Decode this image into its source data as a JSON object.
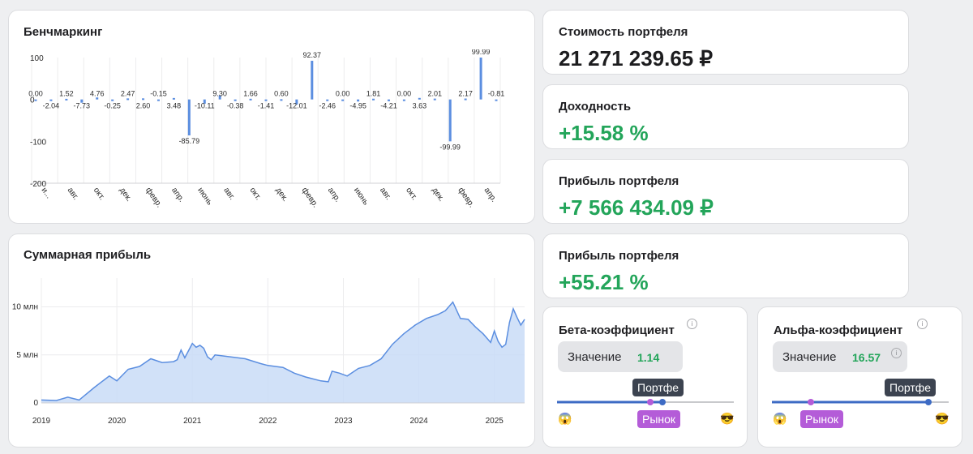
{
  "benchmark": {
    "title": "Бенчмаркинг",
    "chart_data": {
      "type": "bar",
      "y_ticks": [
        100,
        0,
        -100,
        -200
      ],
      "ylim": [
        -200,
        100
      ],
      "x_tick_labels": [
        "и...",
        "авг.",
        "окт.",
        "дек.",
        "февр.",
        "апр.",
        "июнь",
        "авг.",
        "окт.",
        "дек.",
        "февр.",
        "апр.",
        "июнь",
        "авг.",
        "окт.",
        "дек.",
        "февр.",
        "апр."
      ],
      "values": [
        0.0,
        -2.04,
        1.52,
        -7.73,
        4.76,
        -0.25,
        2.47,
        2.6,
        -0.15,
        3.48,
        -85.79,
        -10.11,
        9.3,
        -0.38,
        1.66,
        -1.41,
        0.6,
        -12.01,
        92.37,
        -2.46,
        0.0,
        -4.95,
        1.81,
        -4.21,
        0.0,
        3.63,
        2.01,
        -99.99,
        2.17,
        99.99,
        -0.81
      ],
      "labels": [
        "0.00",
        "-2.04",
        "1.52",
        "-7.73",
        "4.76",
        "-0.25",
        "2.47",
        "2.60",
        "-0.15",
        "3.48",
        "-85.79",
        "-10.11",
        "9.30",
        "-0.38",
        "1.66",
        "-1.41",
        "0.60",
        "-12.01",
        "92.37",
        "-2.46",
        "0.00",
        "-4.95",
        "1.81",
        "-4.21",
        "0.00",
        "3.63",
        "2.01",
        "-99.99",
        "2.17",
        "99.99",
        "-0.81"
      ],
      "bar_color": "#5b8ee0",
      "grid": true
    }
  },
  "cumulative": {
    "title": "Суммарная прибыль",
    "chart_data": {
      "type": "area",
      "x_ticks": [
        "2019",
        "2020",
        "2021",
        "2022",
        "2023",
        "2024",
        "2025"
      ],
      "y_ticks": [
        "0",
        "5 млн",
        "10 млн"
      ],
      "y_tick_values": [
        0,
        5000000,
        10000000
      ],
      "ylim": [
        0,
        13000000
      ],
      "x_range": [
        2019.0,
        2025.4
      ],
      "x": [
        2019.0,
        2019.2,
        2019.35,
        2019.5,
        2019.7,
        2019.9,
        2020.0,
        2020.15,
        2020.3,
        2020.45,
        2020.6,
        2020.75,
        2020.8,
        2020.85,
        2020.9,
        2021.0,
        2021.05,
        2021.1,
        2021.15,
        2021.2,
        2021.25,
        2021.3,
        2021.5,
        2021.7,
        2021.9,
        2022.0,
        2022.1,
        2022.2,
        2022.35,
        2022.5,
        2022.7,
        2022.8,
        2022.85,
        2022.95,
        2023.05,
        2023.2,
        2023.35,
        2023.5,
        2023.65,
        2023.8,
        2023.95,
        2024.1,
        2024.25,
        2024.35,
        2024.45,
        2024.55,
        2024.65,
        2024.75,
        2024.85,
        2024.95,
        2025.0,
        2025.05,
        2025.1,
        2025.15,
        2025.2,
        2025.25,
        2025.3,
        2025.35,
        2025.4
      ],
      "y": [
        300000,
        250000,
        600000,
        300000,
        1600000,
        2800000,
        2300000,
        3500000,
        3800000,
        4600000,
        4200000,
        4300000,
        4500000,
        5500000,
        4700000,
        6200000,
        5800000,
        6000000,
        5700000,
        4800000,
        4500000,
        5000000,
        4800000,
        4600000,
        4100000,
        3900000,
        3800000,
        3700000,
        3100000,
        2700000,
        2300000,
        2200000,
        3300000,
        3100000,
        2800000,
        3600000,
        3900000,
        4600000,
        6100000,
        7200000,
        8100000,
        8800000,
        9200000,
        9600000,
        10500000,
        8800000,
        8700000,
        7900000,
        7200000,
        6300000,
        7500000,
        6400000,
        5800000,
        6100000,
        8400000,
        9800000,
        8900000,
        8100000,
        8700000
      ],
      "line_color": "#5b8ee0",
      "fill_color": "#c9dcf7",
      "grid": true
    }
  },
  "portfolio_value": {
    "title": "Стоимость портфеля",
    "value": "21 271 239.65 ₽"
  },
  "yield": {
    "title": "Доходность",
    "value": "+15.58 %"
  },
  "profit_abs": {
    "title": "Прибыль портфеля",
    "value": "+7 566 434.09 ₽"
  },
  "profit_pct": {
    "title": "Прибыль портфеля",
    "value": "+55.21 %"
  },
  "beta": {
    "title": "Бета-коэффициент",
    "info": "i",
    "value_label": "Значение",
    "value": "1.14",
    "portfolio_tag": "Портфе",
    "market_tag": "Рынок",
    "left_emoji": "😱",
    "right_emoji": "😎"
  },
  "alpha": {
    "title": "Альфа-коэффициент",
    "info": "i",
    "value_label": "Значение",
    "value": "16.57",
    "portfolio_tag": "Портфе",
    "market_tag": "Рынок",
    "left_emoji": "😱",
    "right_emoji": "😎"
  },
  "colors": {
    "accent": "#5b8ee0",
    "positive": "#23a55a",
    "tag_dark": "#3c4350",
    "tag_purple": "#b45cd8",
    "slider_track": "#3d6bc4"
  }
}
